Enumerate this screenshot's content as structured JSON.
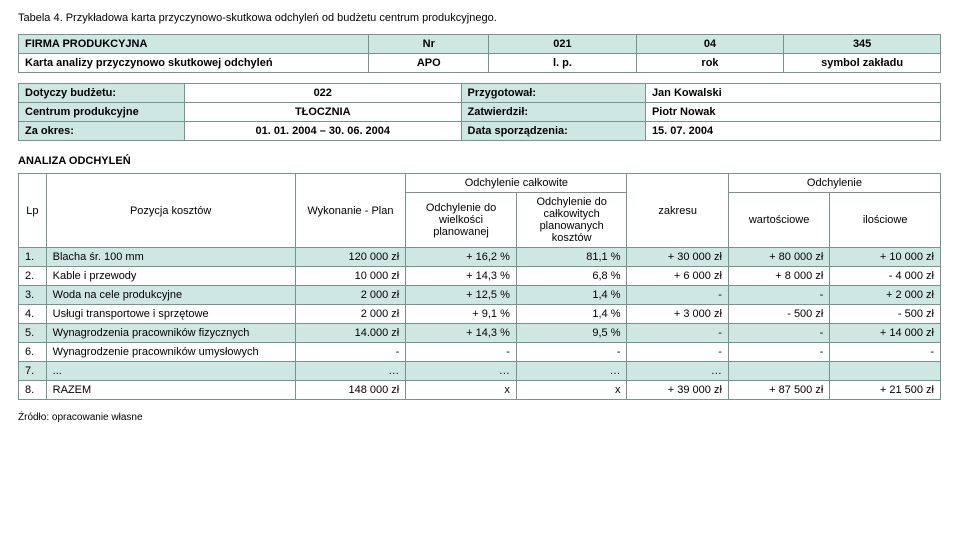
{
  "caption": "Tabela 4. Przykładowa karta przyczynowo-skutkowa odchyleń od budżetu centrum produkcyjnego.",
  "header": {
    "row1": {
      "c0": "FIRMA PRODUKCYJNA",
      "c1": "Nr",
      "c2": "021",
      "c3": "04",
      "c4": "345"
    },
    "row2": {
      "c0": "Karta analizy przyczynowo skutkowej odchyleń",
      "c1": "APO",
      "c2": "l. p.",
      "c3": "rok",
      "c4": "symbol zakładu"
    }
  },
  "meta": {
    "r1": {
      "c0": "Dotyczy budżetu:",
      "c1": "022",
      "c2": "Przygotował:",
      "c3": "Jan Kowalski"
    },
    "r2": {
      "c0": "Centrum produkcyjne",
      "c1": "TŁOCZNIA",
      "c2": "Zatwierdził:",
      "c3": "Piotr Nowak"
    },
    "r3": {
      "c0": "Za okres:",
      "c1": "01. 01. 2004 – 30. 06. 2004",
      "c2": "Data sporządzenia:",
      "c3": "15. 07. 2004"
    }
  },
  "analysis_title": "ANALIZA ODCHYLEŃ",
  "thead": {
    "lp": "Lp",
    "pozycja": "Pozycja kosztów",
    "wykonanie": "Wykonanie - Plan",
    "odch_calk": "Odchylenie całkowite",
    "odch_do_wielk": "Odchylenie do wielkości planowanej",
    "odch_do_calk": "Odchylenie do całkowitych planowanych kosztów",
    "odch": "Odchylenie",
    "zakresu": "zakresu",
    "wartosciowe": "wartościowe",
    "ilosciowe": "ilościowe"
  },
  "rows": [
    {
      "lp": "1.",
      "poz": "Blacha śr. 100 mm",
      "wyk": "120 000 zł",
      "od_w": "+ 16,2 %",
      "od_c": "81,1 %",
      "zak": "+ 30 000 zł",
      "war": "+ 80 000 zł",
      "ilo": "+ 10 000 zł"
    },
    {
      "lp": "2.",
      "poz": "Kable i przewody",
      "wyk": "10 000 zł",
      "od_w": "+ 14,3 %",
      "od_c": "6,8 %",
      "zak": "+ 6 000 zł",
      "war": "+ 8 000 zł",
      "ilo": "- 4 000 zł"
    },
    {
      "lp": "3.",
      "poz": "Woda na cele produkcyjne",
      "wyk": "2 000 zł",
      "od_w": "+ 12,5 %",
      "od_c": "1,4 %",
      "zak": "-",
      "war": "-",
      "ilo": "+ 2 000 zł"
    },
    {
      "lp": "4.",
      "poz": "Usługi transportowe i sprzętowe",
      "wyk": "2 000 zł",
      "od_w": "+ 9,1 %",
      "od_c": "1,4 %",
      "zak": "+ 3 000 zł",
      "war": "- 500 zł",
      "ilo": "- 500 zł"
    },
    {
      "lp": "5.",
      "poz": "Wynagrodzenia pracowników fizycznych",
      "wyk": "14.000 zł",
      "od_w": "+ 14,3 %",
      "od_c": "9,5 %",
      "zak": "-",
      "war": "-",
      "ilo": "+ 14 000 zł"
    },
    {
      "lp": "6.",
      "poz": "Wynagrodzenie pracowników umysłowych",
      "wyk": "-",
      "od_w": "-",
      "od_c": "-",
      "zak": "-",
      "war": "-",
      "ilo": "-"
    },
    {
      "lp": "7.",
      "poz": "...",
      "wyk": "…",
      "od_w": "…",
      "od_c": "…",
      "zak": "…",
      "war": "",
      "ilo": ""
    },
    {
      "lp": "8.",
      "poz": "RAZEM",
      "wyk": "148 000 zł",
      "od_w": "x",
      "od_c": "x",
      "zak": "+ 39 000 zł",
      "war": "+ 87 500 zł",
      "ilo": "+ 21 500 zł"
    }
  ],
  "source": "Źródło: opracowanie własne"
}
